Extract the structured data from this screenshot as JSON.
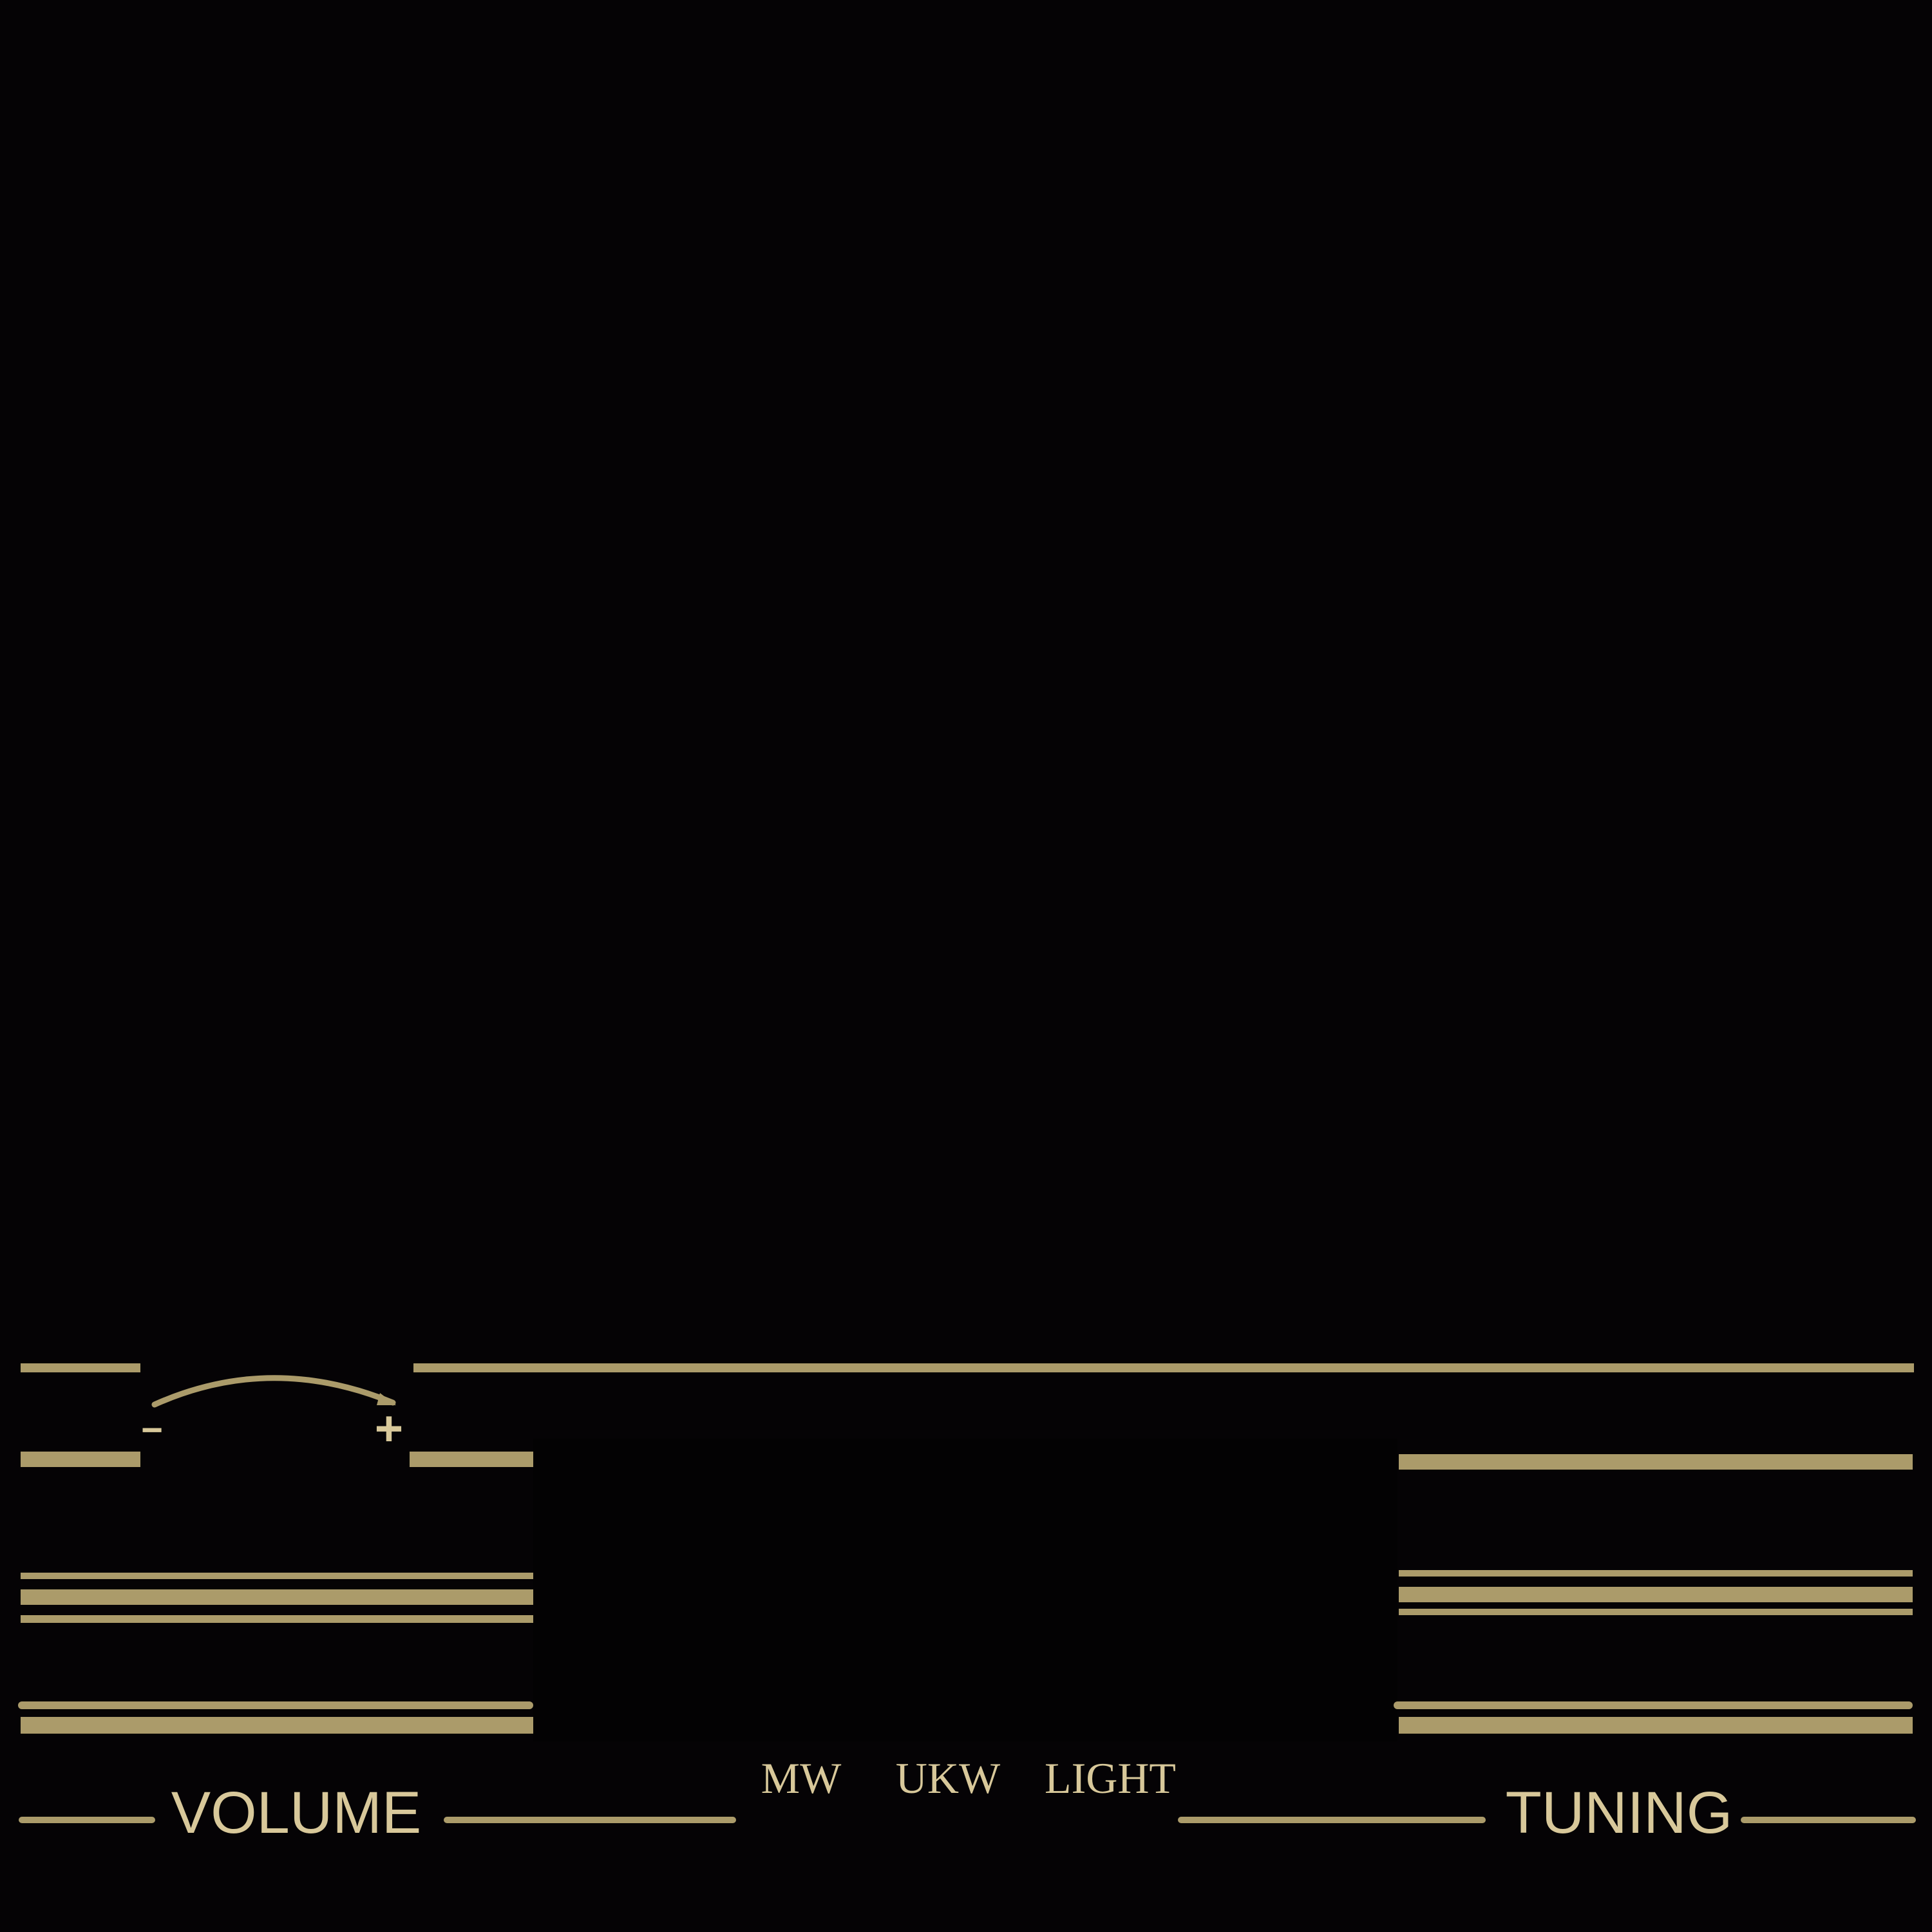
{
  "colors": {
    "background": "#050305",
    "gold": "#ab9b6a",
    "label": "#d8c89a"
  },
  "volume": {
    "minus": "−",
    "plus": "+",
    "label": "VOLUME"
  },
  "bands": {
    "mw": "MW",
    "ukw": "UKW",
    "light": "LIGHT"
  },
  "tuning": {
    "label": "TUNING"
  }
}
